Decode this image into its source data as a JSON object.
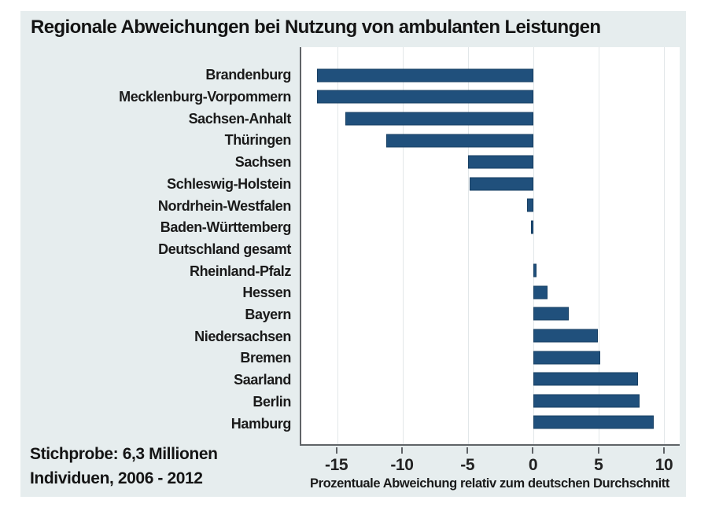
{
  "title": "Regionale Abweichungen bei Nutzung von ambulanten Leistungen",
  "note": {
    "line1": "Stichprobe: 6,3 Millionen",
    "line2": "Individuen, 2006 - 2012"
  },
  "colors": {
    "bar_fill": "#20507c",
    "bar_border": "#173f63",
    "panel_background": "#e6edee",
    "plot_background": "#ffffff",
    "gridline": "#e2e7e9",
    "axis_line": "#5f6367",
    "text": "#1a1a1a"
  },
  "chart_data": {
    "type": "bar",
    "orientation": "horizontal",
    "title": "Regionale Abweichungen bei Nutzung von ambulanten Leistungen",
    "xlabel": "Prozentuale Abweichung relativ zum deutschen Durchschnitt",
    "ylabel": "",
    "categories": [
      "Brandenburg",
      "Mecklenburg-Vorpommern",
      "Sachsen-Anhalt",
      "Thüringen",
      "Sachsen",
      "Schleswig-Holstein",
      "Nordrhein-Westfalen",
      "Baden-Württemberg",
      "Deutschland gesamt",
      "Rheinland-Pfalz",
      "Hessen",
      "Bayern",
      "Niedersachsen",
      "Bremen",
      "Saarland",
      "Berlin",
      "Hamburg"
    ],
    "values": [
      -16.6,
      -16.6,
      -14.4,
      -11.3,
      -5.0,
      -4.9,
      -0.5,
      -0.2,
      0,
      0.2,
      1.1,
      2.7,
      4.9,
      5.1,
      8.0,
      8.1,
      9.2
    ],
    "xticks": [
      -15,
      -10,
      -5,
      0,
      5,
      10
    ],
    "xlim": [
      -17.8,
      11.2
    ],
    "grid": true,
    "legend": false
  }
}
